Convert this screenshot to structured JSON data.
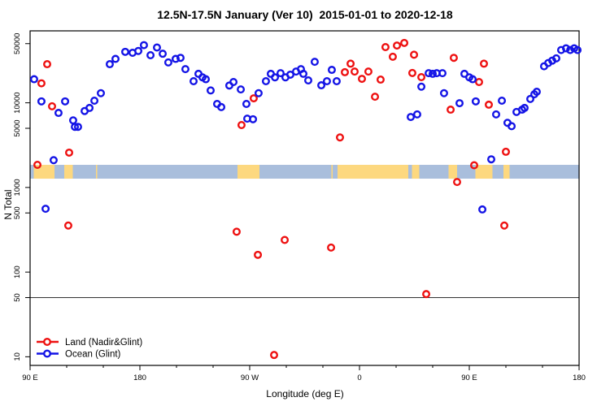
{
  "title": "12.5N-17.5N January (Ver 10)  2015-01-01 to 2020-12-18",
  "chart_data": {
    "type": "scatter",
    "title": "12.5N-17.5N January (Ver 10)  2015-01-01 to 2020-12-18",
    "xlabel": "Longitude (deg E)",
    "ylabel": "N Total",
    "x_axis": {
      "note": "longitude axis starts at 90E and wraps eastward 450 degrees",
      "tick_positions_deg": [
        0,
        90,
        180,
        270,
        360,
        450
      ],
      "tick_labels": [
        "90 E",
        "180",
        "90 W",
        "0",
        "90 E",
        "180"
      ],
      "minor_tick_step_deg": 30,
      "range_deg": [
        0,
        450
      ]
    },
    "y_axis": {
      "scale": "log",
      "tick_values": [
        10,
        50,
        100,
        500,
        1000,
        5000,
        10000,
        50000
      ],
      "tick_labels": [
        "10",
        "50",
        "100",
        "500",
        "1000",
        "5000",
        "10000",
        "50000"
      ],
      "range": [
        7.9,
        70800
      ]
    },
    "reference_line_n": 50,
    "grid": "off",
    "legend_position": "bottom-left-inside",
    "map_band": {
      "description": "world map strip of the 12.5N-17.5N latitude band",
      "top_n": 1850,
      "bottom_n": 1270,
      "ocean_color": "#a9bedc",
      "land_color": "#fdd87f",
      "land_segments_deg": [
        [
          3,
          20
        ],
        [
          28,
          35
        ],
        [
          54,
          55
        ],
        [
          170,
          188
        ],
        [
          247,
          248
        ],
        [
          252,
          310
        ],
        [
          313,
          319
        ],
        [
          343,
          350
        ],
        [
          365,
          379
        ],
        [
          388,
          393
        ]
      ]
    },
    "series": [
      {
        "name": "Land (Nadir&Glint)",
        "color": "#ee1111",
        "points": [
          [
            14,
            28600
          ],
          [
            9.3,
            17000
          ],
          [
            18,
            9100
          ],
          [
            6,
            1850
          ],
          [
            32,
            2580
          ],
          [
            31.3,
            355
          ],
          [
            183.3,
            11300
          ],
          [
            173.3,
            5460
          ],
          [
            169.3,
            300
          ],
          [
            186.7,
            160
          ],
          [
            208.7,
            240
          ],
          [
            200,
            10.5
          ],
          [
            258,
            23000
          ],
          [
            262.7,
            29000
          ],
          [
            266,
            23400
          ],
          [
            272,
            19200
          ],
          [
            277.3,
            23400
          ],
          [
            282.7,
            11800
          ],
          [
            287.3,
            18800
          ],
          [
            291.3,
            45500
          ],
          [
            297.3,
            35000
          ],
          [
            300.7,
            47500
          ],
          [
            306.7,
            51000
          ],
          [
            313.3,
            22500
          ],
          [
            314.7,
            37000
          ],
          [
            320.7,
            20100
          ],
          [
            254,
            3900
          ],
          [
            246.7,
            195
          ],
          [
            324.7,
            55
          ],
          [
            347.3,
            34000
          ],
          [
            372,
            29000
          ],
          [
            368,
            17600
          ],
          [
            344.7,
            8300
          ],
          [
            376,
            9500
          ],
          [
            390,
            2640
          ],
          [
            364,
            1830
          ],
          [
            350,
            1160
          ],
          [
            388.7,
            355
          ]
        ]
      },
      {
        "name": "Ocean (Glint)",
        "color": "#1414e6",
        "points": [
          [
            3.3,
            19000
          ],
          [
            9.3,
            10400
          ],
          [
            23.3,
            7600
          ],
          [
            28.7,
            10400
          ],
          [
            35.3,
            6200
          ],
          [
            36.7,
            5200
          ],
          [
            39.3,
            5200
          ],
          [
            44.7,
            8000
          ],
          [
            48.7,
            8700
          ],
          [
            52.7,
            10600
          ],
          [
            58,
            13000
          ],
          [
            65.3,
            28600
          ],
          [
            70,
            33000
          ],
          [
            78,
            40000
          ],
          [
            84,
            39000
          ],
          [
            88.7,
            41000
          ],
          [
            93.3,
            48000
          ],
          [
            98.7,
            36500
          ],
          [
            104,
            45000
          ],
          [
            108.7,
            38000
          ],
          [
            113.3,
            30000
          ],
          [
            119.3,
            33000
          ],
          [
            123.3,
            34000
          ],
          [
            127.3,
            25000
          ],
          [
            134,
            18000
          ],
          [
            138,
            22000
          ],
          [
            141.3,
            20000
          ],
          [
            144,
            19000
          ],
          [
            148,
            14000
          ],
          [
            153.3,
            9700
          ],
          [
            156.7,
            8900
          ],
          [
            163.3,
            16000
          ],
          [
            166.7,
            17600
          ],
          [
            172.7,
            14400
          ],
          [
            177.3,
            9700
          ],
          [
            178,
            6500
          ],
          [
            182.7,
            6400
          ],
          [
            187.3,
            13000
          ],
          [
            193.3,
            18000
          ],
          [
            197.3,
            22000
          ],
          [
            200.7,
            20000
          ],
          [
            205.3,
            22400
          ],
          [
            209.3,
            20000
          ],
          [
            213.3,
            21500
          ],
          [
            218,
            23400
          ],
          [
            222,
            25000
          ],
          [
            224,
            22000
          ],
          [
            228,
            18400
          ],
          [
            233.3,
            30500
          ],
          [
            238.7,
            16100
          ],
          [
            243.3,
            18000
          ],
          [
            247.3,
            24500
          ],
          [
            251.3,
            18000
          ],
          [
            320.7,
            15500
          ],
          [
            326.7,
            22400
          ],
          [
            330,
            22000
          ],
          [
            333.3,
            22400
          ],
          [
            338,
            22400
          ],
          [
            339.3,
            13000
          ],
          [
            312,
            6800
          ],
          [
            317.3,
            7300
          ],
          [
            356,
            22000
          ],
          [
            360,
            20000
          ],
          [
            362.7,
            19000
          ],
          [
            352,
            9900
          ],
          [
            365.3,
            10400
          ],
          [
            386.7,
            10600
          ],
          [
            382,
            7300
          ],
          [
            391.3,
            5800
          ],
          [
            394.7,
            5300
          ],
          [
            398.7,
            7800
          ],
          [
            403.3,
            8300
          ],
          [
            405.3,
            8700
          ],
          [
            410,
            11100
          ],
          [
            413.3,
            12600
          ],
          [
            415.3,
            13500
          ],
          [
            421.3,
            27000
          ],
          [
            424.7,
            29500
          ],
          [
            428,
            31500
          ],
          [
            431.3,
            33500
          ],
          [
            435.3,
            42000
          ],
          [
            439.3,
            44000
          ],
          [
            442.7,
            42000
          ],
          [
            446,
            44000
          ],
          [
            448.7,
            42000
          ],
          [
            19.3,
            2100
          ],
          [
            12.7,
            560
          ],
          [
            378,
            2150
          ],
          [
            370.7,
            550
          ]
        ]
      }
    ],
    "legend": [
      "Land (Nadir&Glint)",
      "Ocean (Glint)"
    ]
  }
}
